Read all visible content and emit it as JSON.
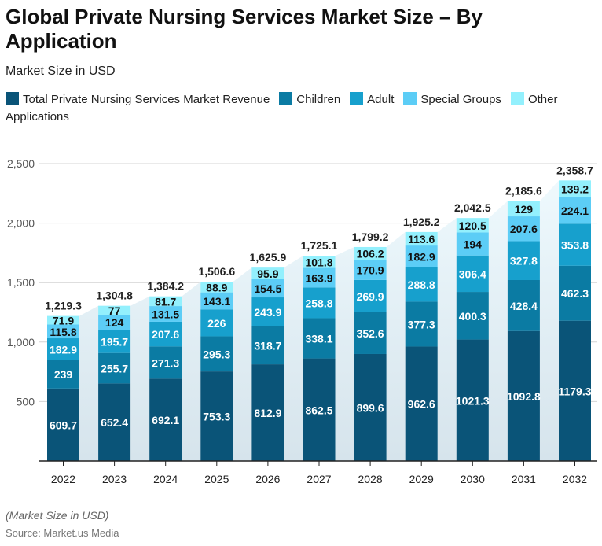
{
  "title": "Global Private Nursing Services Market Size – By Application",
  "subtitle": "Market Size in USD",
  "footnote": "(Market Size in USD)",
  "source": "Source: Market.us Media",
  "chart_data": {
    "type": "bar",
    "stacked": true,
    "categories": [
      "2022",
      "2023",
      "2024",
      "2025",
      "2026",
      "2027",
      "2028",
      "2029",
      "2030",
      "2031",
      "2032"
    ],
    "series": [
      {
        "name": "Total Private Nursing Services Market Revenue",
        "color": "#0a5478",
        "values": [
          609.7,
          652.4,
          692.1,
          753.3,
          812.9,
          862.5,
          899.6,
          962.6,
          1021.3,
          1092.8,
          1179.3
        ]
      },
      {
        "name": "Children",
        "color": "#0b7ba3",
        "values": [
          239,
          255.7,
          271.3,
          295.3,
          318.7,
          338.1,
          352.6,
          377.3,
          400.3,
          428.4,
          462.3
        ]
      },
      {
        "name": "Adult",
        "color": "#17a0cd",
        "values": [
          182.9,
          195.7,
          207.6,
          226,
          243.9,
          258.8,
          269.9,
          288.8,
          306.4,
          327.8,
          353.8
        ]
      },
      {
        "name": "Special Groups",
        "color": "#5ccdf6",
        "values": [
          115.8,
          124,
          131.5,
          143.1,
          154.5,
          163.9,
          170.9,
          182.9,
          194,
          207.6,
          224.1
        ]
      },
      {
        "name": "Other Applications",
        "color": "#93f0fd",
        "values": [
          71.9,
          77,
          81.7,
          88.9,
          95.9,
          101.8,
          106.2,
          113.6,
          120.5,
          129,
          139.2
        ]
      }
    ],
    "totals": [
      "1,219.3",
      "1,304.8",
      "1,384.2",
      "1,506.6",
      "1,625.9",
      "1,725.1",
      "1,799.2",
      "1,925.2",
      "2,042.5",
      "2,185.6",
      "2,358.7"
    ],
    "yticks": [
      "500",
      "1,000",
      "1,500",
      "2,000",
      "2,500"
    ],
    "ylim": [
      0,
      2500
    ],
    "grid": true,
    "legend_position": "top-left"
  }
}
